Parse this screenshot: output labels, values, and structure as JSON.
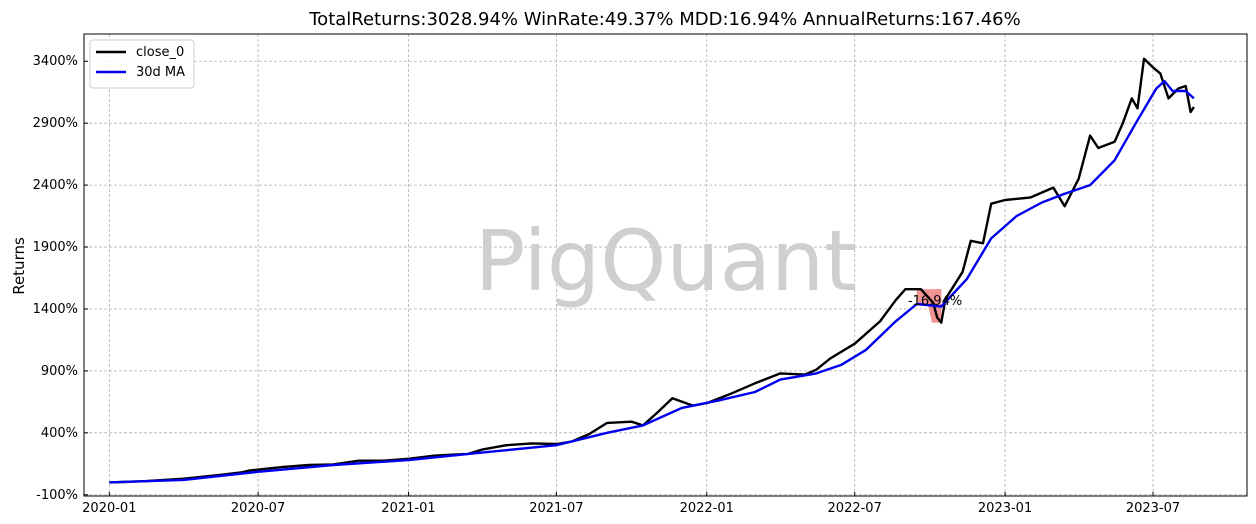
{
  "chart_data": {
    "type": "line",
    "title": "TotalReturns:3028.94%  WinRate:49.37%  MDD:16.94%  AnnualReturns:167.46%",
    "ylabel": "Returns",
    "xlabel": "",
    "watermark": "PigQuant",
    "x_range": [
      "2019-12-01",
      "2023-10-24"
    ],
    "ylim": [
      -110,
      3620
    ],
    "y_ticks": [
      -100,
      400,
      900,
      1400,
      1900,
      2400,
      2900,
      3400
    ],
    "y_tick_labels": [
      "-100%",
      "400%",
      "900%",
      "1400%",
      "1900%",
      "2400%",
      "2900%",
      "3400%"
    ],
    "x_ticks": [
      "2020-01-01",
      "2020-07-01",
      "2021-01-01",
      "2021-07-01",
      "2022-01-01",
      "2022-07-01",
      "2023-01-01",
      "2023-07-01"
    ],
    "x_tick_labels": [
      "2020-01",
      "2020-07",
      "2021-01",
      "2021-07",
      "2022-01",
      "2022-07",
      "2023-01",
      "2023-07"
    ],
    "grid": true,
    "legend_position": "top-left",
    "series": [
      {
        "name": "close_0",
        "color": "#000000",
        "points": [
          [
            "2020-01-01",
            0
          ],
          [
            "2020-02-15",
            10
          ],
          [
            "2020-04-01",
            30
          ],
          [
            "2020-05-15",
            60
          ],
          [
            "2020-06-10",
            80
          ],
          [
            "2020-06-20",
            95
          ],
          [
            "2020-07-10",
            110
          ],
          [
            "2020-08-01",
            125
          ],
          [
            "2020-09-01",
            140
          ],
          [
            "2020-10-01",
            145
          ],
          [
            "2020-11-01",
            175
          ],
          [
            "2020-12-01",
            175
          ],
          [
            "2021-01-01",
            190
          ],
          [
            "2021-02-01",
            215
          ],
          [
            "2021-03-01",
            225
          ],
          [
            "2021-03-15",
            230
          ],
          [
            "2021-04-01",
            265
          ],
          [
            "2021-05-01",
            300
          ],
          [
            "2021-06-01",
            315
          ],
          [
            "2021-07-01",
            310
          ],
          [
            "2021-07-20",
            330
          ],
          [
            "2021-08-10",
            390
          ],
          [
            "2021-09-01",
            480
          ],
          [
            "2021-10-01",
            490
          ],
          [
            "2021-10-15",
            460
          ],
          [
            "2021-11-01",
            560
          ],
          [
            "2021-11-20",
            680
          ],
          [
            "2021-12-15",
            620
          ],
          [
            "2022-01-01",
            640
          ],
          [
            "2022-02-01",
            720
          ],
          [
            "2022-03-01",
            800
          ],
          [
            "2022-04-01",
            880
          ],
          [
            "2022-05-01",
            870
          ],
          [
            "2022-05-15",
            910
          ],
          [
            "2022-06-01",
            1000
          ],
          [
            "2022-07-01",
            1120
          ],
          [
            "2022-08-01",
            1300
          ],
          [
            "2022-08-20",
            1470
          ],
          [
            "2022-09-01",
            1560
          ],
          [
            "2022-09-20",
            1560
          ],
          [
            "2022-10-05",
            1450
          ],
          [
            "2022-10-10",
            1330
          ],
          [
            "2022-10-15",
            1290
          ],
          [
            "2022-10-20",
            1480
          ],
          [
            "2022-11-10",
            1700
          ],
          [
            "2022-11-20",
            1950
          ],
          [
            "2022-12-05",
            1930
          ],
          [
            "2022-12-15",
            2250
          ],
          [
            "2023-01-01",
            2280
          ],
          [
            "2023-02-01",
            2300
          ],
          [
            "2023-03-01",
            2380
          ],
          [
            "2023-03-15",
            2230
          ],
          [
            "2023-04-01",
            2450
          ],
          [
            "2023-04-15",
            2800
          ],
          [
            "2023-04-25",
            2700
          ],
          [
            "2023-05-15",
            2750
          ],
          [
            "2023-05-25",
            2900
          ],
          [
            "2023-06-05",
            3100
          ],
          [
            "2023-06-12",
            3020
          ],
          [
            "2023-06-20",
            3420
          ],
          [
            "2023-07-01",
            3350
          ],
          [
            "2023-07-10",
            3300
          ],
          [
            "2023-07-20",
            3100
          ],
          [
            "2023-08-01",
            3180
          ],
          [
            "2023-08-10",
            3200
          ],
          [
            "2023-08-16",
            2990
          ],
          [
            "2023-08-20",
            3030
          ]
        ]
      },
      {
        "name": "30d MA",
        "color": "#0000ee",
        "points": [
          [
            "2020-01-01",
            0
          ],
          [
            "2020-04-01",
            20
          ],
          [
            "2020-07-01",
            85
          ],
          [
            "2020-10-01",
            140
          ],
          [
            "2021-01-01",
            180
          ],
          [
            "2021-04-01",
            240
          ],
          [
            "2021-07-01",
            300
          ],
          [
            "2021-09-01",
            400
          ],
          [
            "2021-10-15",
            460
          ],
          [
            "2021-12-01",
            600
          ],
          [
            "2022-01-15",
            660
          ],
          [
            "2022-03-01",
            730
          ],
          [
            "2022-04-01",
            830
          ],
          [
            "2022-05-15",
            880
          ],
          [
            "2022-06-15",
            950
          ],
          [
            "2022-07-15",
            1070
          ],
          [
            "2022-08-20",
            1300
          ],
          [
            "2022-09-15",
            1440
          ],
          [
            "2022-10-15",
            1420
          ],
          [
            "2022-11-15",
            1640
          ],
          [
            "2022-12-15",
            1970
          ],
          [
            "2023-01-15",
            2150
          ],
          [
            "2023-02-15",
            2260
          ],
          [
            "2023-03-15",
            2330
          ],
          [
            "2023-04-15",
            2400
          ],
          [
            "2023-05-15",
            2600
          ],
          [
            "2023-06-10",
            2900
          ],
          [
            "2023-07-05",
            3180
          ],
          [
            "2023-07-15",
            3240
          ],
          [
            "2023-07-25",
            3160
          ],
          [
            "2023-08-10",
            3160
          ],
          [
            "2023-08-20",
            3100
          ]
        ]
      }
    ],
    "drawdown": {
      "label": "-16.94%",
      "color": "#f08080",
      "start": "2022-09-15",
      "end": "2022-10-15",
      "peak": 1560,
      "trough": 1290
    }
  }
}
